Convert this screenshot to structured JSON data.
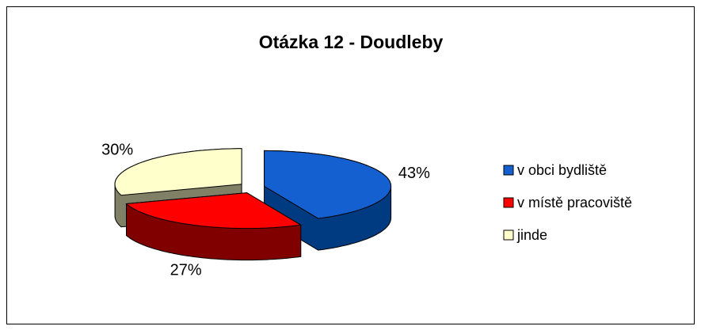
{
  "chart_data": {
    "type": "pie",
    "title": "Otázka 12 - Doudleby",
    "categories": [
      "v obci bydliště",
      "v místě pracoviště",
      "jinde"
    ],
    "values": [
      43,
      27,
      30
    ],
    "value_labels": [
      "43%",
      "27%",
      "30%"
    ],
    "colors": [
      "#1560d0",
      "#ff0000",
      "#ffffcc"
    ],
    "side_colors": [
      "#003a80",
      "#800000",
      "#808066"
    ],
    "legend": "right"
  }
}
